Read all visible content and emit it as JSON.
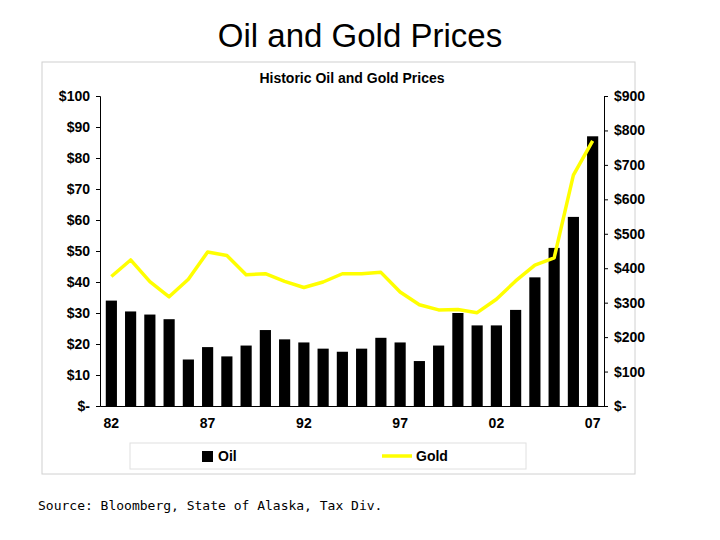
{
  "title": "Oil and Gold Prices",
  "source": "Source: Bloomberg, State of Alaska, Tax Div.",
  "chart_data": {
    "type": "bar",
    "title": "Historic Oil and Gold Prices",
    "categories": [
      "82",
      null,
      null,
      null,
      null,
      "87",
      null,
      null,
      null,
      null,
      "92",
      null,
      null,
      null,
      null,
      "97",
      null,
      null,
      null,
      null,
      "02",
      null,
      null,
      null,
      null,
      "07"
    ],
    "series": [
      {
        "name": "Oil",
        "type": "bar",
        "color": "#000000",
        "values": [
          34,
          30.5,
          29.5,
          28,
          15,
          19,
          16,
          19.5,
          24.5,
          21.5,
          20.5,
          18.5,
          17.5,
          18.5,
          22,
          20.5,
          14.5,
          19.5,
          30,
          26,
          26,
          31,
          41.5,
          51,
          61,
          87
        ]
      },
      {
        "name": "Gold",
        "type": "line",
        "color": "#ffff00",
        "axis": "y2",
        "values": [
          376,
          424,
          361,
          317,
          368,
          447,
          437,
          381,
          384,
          362,
          344,
          360,
          384,
          384,
          388,
          331,
          294,
          279,
          280,
          271,
          310,
          363,
          409,
          430,
          670,
          770
        ]
      }
    ],
    "ylim": [
      0,
      100
    ],
    "yticks": [
      {
        "value": 0,
        "label": "$-"
      },
      {
        "value": 10,
        "label": "$10"
      },
      {
        "value": 20,
        "label": "$20"
      },
      {
        "value": 30,
        "label": "$30"
      },
      {
        "value": 40,
        "label": "$40"
      },
      {
        "value": 50,
        "label": "$50"
      },
      {
        "value": 60,
        "label": "$60"
      },
      {
        "value": 70,
        "label": "$70"
      },
      {
        "value": 80,
        "label": "$80"
      },
      {
        "value": 90,
        "label": "$90"
      },
      {
        "value": 100,
        "label": "$100"
      }
    ],
    "y2lim": [
      0,
      900
    ],
    "y2ticks": [
      {
        "value": 0,
        "label": "$-"
      },
      {
        "value": 100,
        "label": "$100"
      },
      {
        "value": 200,
        "label": "$200"
      },
      {
        "value": 300,
        "label": "$300"
      },
      {
        "value": 400,
        "label": "$400"
      },
      {
        "value": 500,
        "label": "$500"
      },
      {
        "value": 600,
        "label": "$600"
      },
      {
        "value": 700,
        "label": "$700"
      },
      {
        "value": 800,
        "label": "$800"
      },
      {
        "value": 900,
        "label": "$900"
      }
    ],
    "grid": false,
    "legend": "bottom"
  }
}
